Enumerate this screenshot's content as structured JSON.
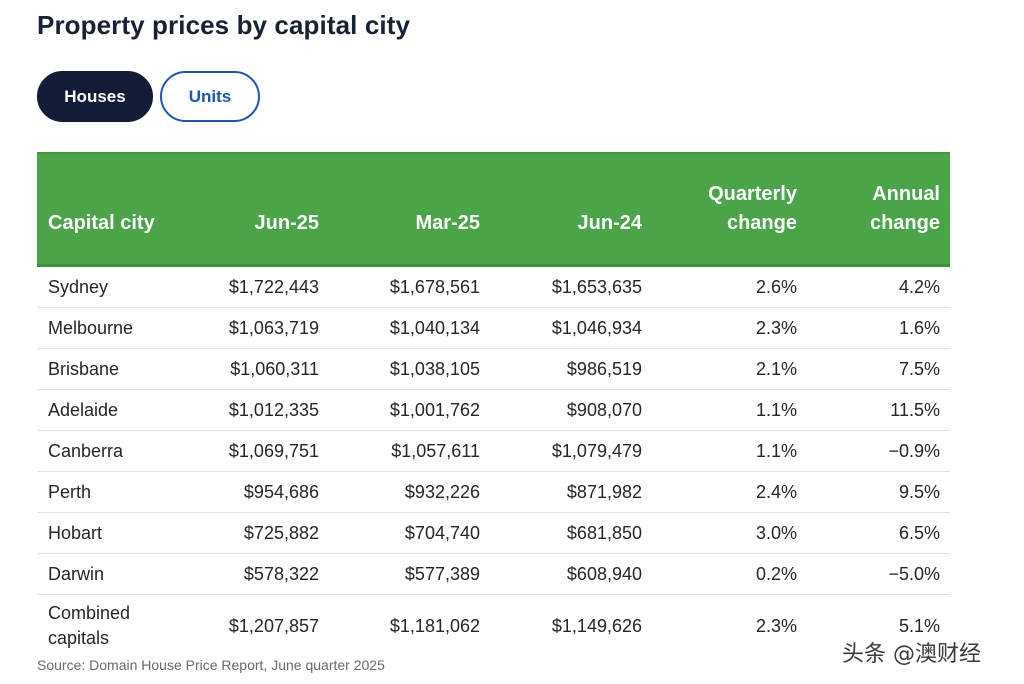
{
  "title": "Property prices by capital city",
  "tabs": [
    {
      "label": "Houses",
      "selected": true
    },
    {
      "label": "Units",
      "selected": false
    }
  ],
  "table": {
    "columns": [
      "Capital city",
      "Jun-25",
      "Mar-25",
      "Jun-24",
      "Quarterly change",
      "Annual change"
    ],
    "columns_lines": [
      [
        "Capital city"
      ],
      [
        "Jun-25"
      ],
      [
        "Mar-25"
      ],
      [
        "Jun-24"
      ],
      [
        "Quarterly",
        "change"
      ],
      [
        "Annual",
        "change"
      ]
    ],
    "rows": [
      {
        "city": "Sydney",
        "jun25": "$1,722,443",
        "mar25": "$1,678,561",
        "jun24": "$1,653,635",
        "quarterly": "2.6%",
        "annual": "4.2%"
      },
      {
        "city": "Melbourne",
        "jun25": "$1,063,719",
        "mar25": "$1,040,134",
        "jun24": "$1,046,934",
        "quarterly": "2.3%",
        "annual": "1.6%"
      },
      {
        "city": "Brisbane",
        "jun25": "$1,060,311",
        "mar25": "$1,038,105",
        "jun24": "$986,519",
        "quarterly": "2.1%",
        "annual": "7.5%"
      },
      {
        "city": "Adelaide",
        "jun25": "$1,012,335",
        "mar25": "$1,001,762",
        "jun24": "$908,070",
        "quarterly": "1.1%",
        "annual": "11.5%"
      },
      {
        "city": "Canberra",
        "jun25": "$1,069,751",
        "mar25": "$1,057,611",
        "jun24": "$1,079,479",
        "quarterly": "1.1%",
        "annual": "−0.9%"
      },
      {
        "city": "Perth",
        "jun25": "$954,686",
        "mar25": "$932,226",
        "jun24": "$871,982",
        "quarterly": "2.4%",
        "annual": "9.5%"
      },
      {
        "city": "Hobart",
        "jun25": "$725,882",
        "mar25": "$704,740",
        "jun24": "$681,850",
        "quarterly": "3.0%",
        "annual": "6.5%"
      },
      {
        "city": "Darwin",
        "jun25": "$578,322",
        "mar25": "$577,389",
        "jun24": "$608,940",
        "quarterly": "0.2%",
        "annual": "−5.0%"
      }
    ],
    "combined": {
      "city_lines": [
        "Combined",
        "capitals"
      ],
      "jun25": "$1,207,857",
      "mar25": "$1,181,062",
      "jun24": "$1,149,626",
      "quarterly": "2.3%",
      "annual": "5.1%"
    }
  },
  "source": "Source: Domain House Price Report, June quarter 2025",
  "watermark": "头条 @澳财经",
  "colors": {
    "header_green": "#4aa548",
    "tab_selected_bg": "#121c36",
    "tab_unselected_border": "#1a56b8"
  }
}
